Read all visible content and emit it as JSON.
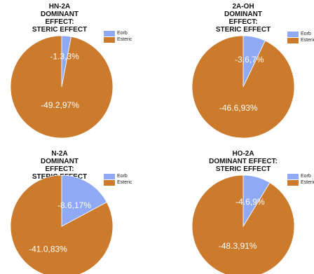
{
  "colors": {
    "eorb": "#8fa9f5",
    "esteric": "#cc7a2b"
  },
  "chart_data": [
    {
      "type": "pie",
      "title": [
        "HN-2A",
        "DOMINANT EFFECT:",
        "STERIC EFFECT"
      ],
      "legend": [
        "Eorb",
        "Esteric"
      ],
      "legend_position": "right",
      "slices": [
        {
          "name": "Eorb",
          "value": 2.97,
          "label": "-1.3,3%"
        },
        {
          "name": "Esteric",
          "value": 97.03,
          "label": "-49.2,97%"
        }
      ]
    },
    {
      "type": "pie",
      "title": [
        "2A-OH",
        "DOMINANT EFFECT:",
        "STERIC EFFECT"
      ],
      "legend": [
        "Eorb",
        "Esteric"
      ],
      "legend_position": "right",
      "slices": [
        {
          "name": "Eorb",
          "value": 7.07,
          "label": "-3.6,7%"
        },
        {
          "name": "Esteric",
          "value": 92.93,
          "label": "-46.6,93%"
        }
      ]
    },
    {
      "type": "pie",
      "title": [
        "N-2A",
        "DOMINANT EFFECT:",
        "STERIC EFFECT"
      ],
      "legend": [
        "Eorb",
        "Esteric"
      ],
      "legend_position": "right",
      "slices": [
        {
          "name": "Eorb",
          "value": 17.17,
          "label": "-8.6,17%"
        },
        {
          "name": "Esteric",
          "value": 82.83,
          "label": "-41.0,83%"
        }
      ]
    },
    {
      "type": "pie",
      "title": [
        "HO-2A",
        "DOMINANT EFFECT:",
        "STERIC EFFECT"
      ],
      "legend": [
        "Eorb",
        "Esteric"
      ],
      "legend_position": "right",
      "slices": [
        {
          "name": "Eorb",
          "value": 8.7,
          "label": "-4.6,9%"
        },
        {
          "name": "Esteric",
          "value": 91.3,
          "label": "-48.3,91%"
        }
      ]
    }
  ]
}
